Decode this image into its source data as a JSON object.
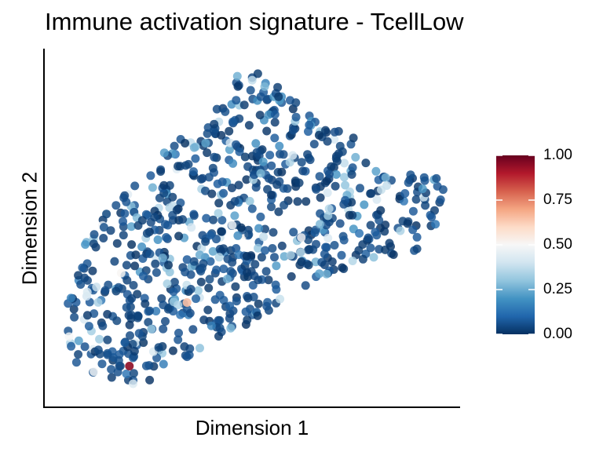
{
  "chart_data": {
    "type": "scatter",
    "title": "Immune activation signature - TcellLow",
    "xlabel": "Dimension 1",
    "ylabel": "Dimension 2",
    "xlim": [
      0,
      100
    ],
    "ylim": [
      0,
      100
    ],
    "grid": false,
    "axis_ticks": false,
    "colorbar": {
      "position": "right",
      "min": 0.0,
      "max": 1.0,
      "ticks": [
        "1.00",
        "0.75",
        "0.50",
        "0.25",
        "0.00"
      ],
      "colors": [
        "#053061",
        "#2166ac",
        "#4393c3",
        "#92c5de",
        "#d1e5f0",
        "#f7f7f7",
        "#fddbc7",
        "#f4a582",
        "#d6604d",
        "#b2182b",
        "#67001f"
      ]
    },
    "point_count_approx": 800,
    "points_note": "dense cloud of cells; values mostly 0.00-0.10 (dark navy), scattered 0.2-0.45 (blue/light blue), few near 0.5 (white), one ~0.65 (salmon), one ~0.95 (dark red)",
    "highlighted_points": [
      {
        "x": 20,
        "y": 11,
        "value": 0.95
      },
      {
        "x": 34,
        "y": 29,
        "value": 0.65
      }
    ]
  }
}
